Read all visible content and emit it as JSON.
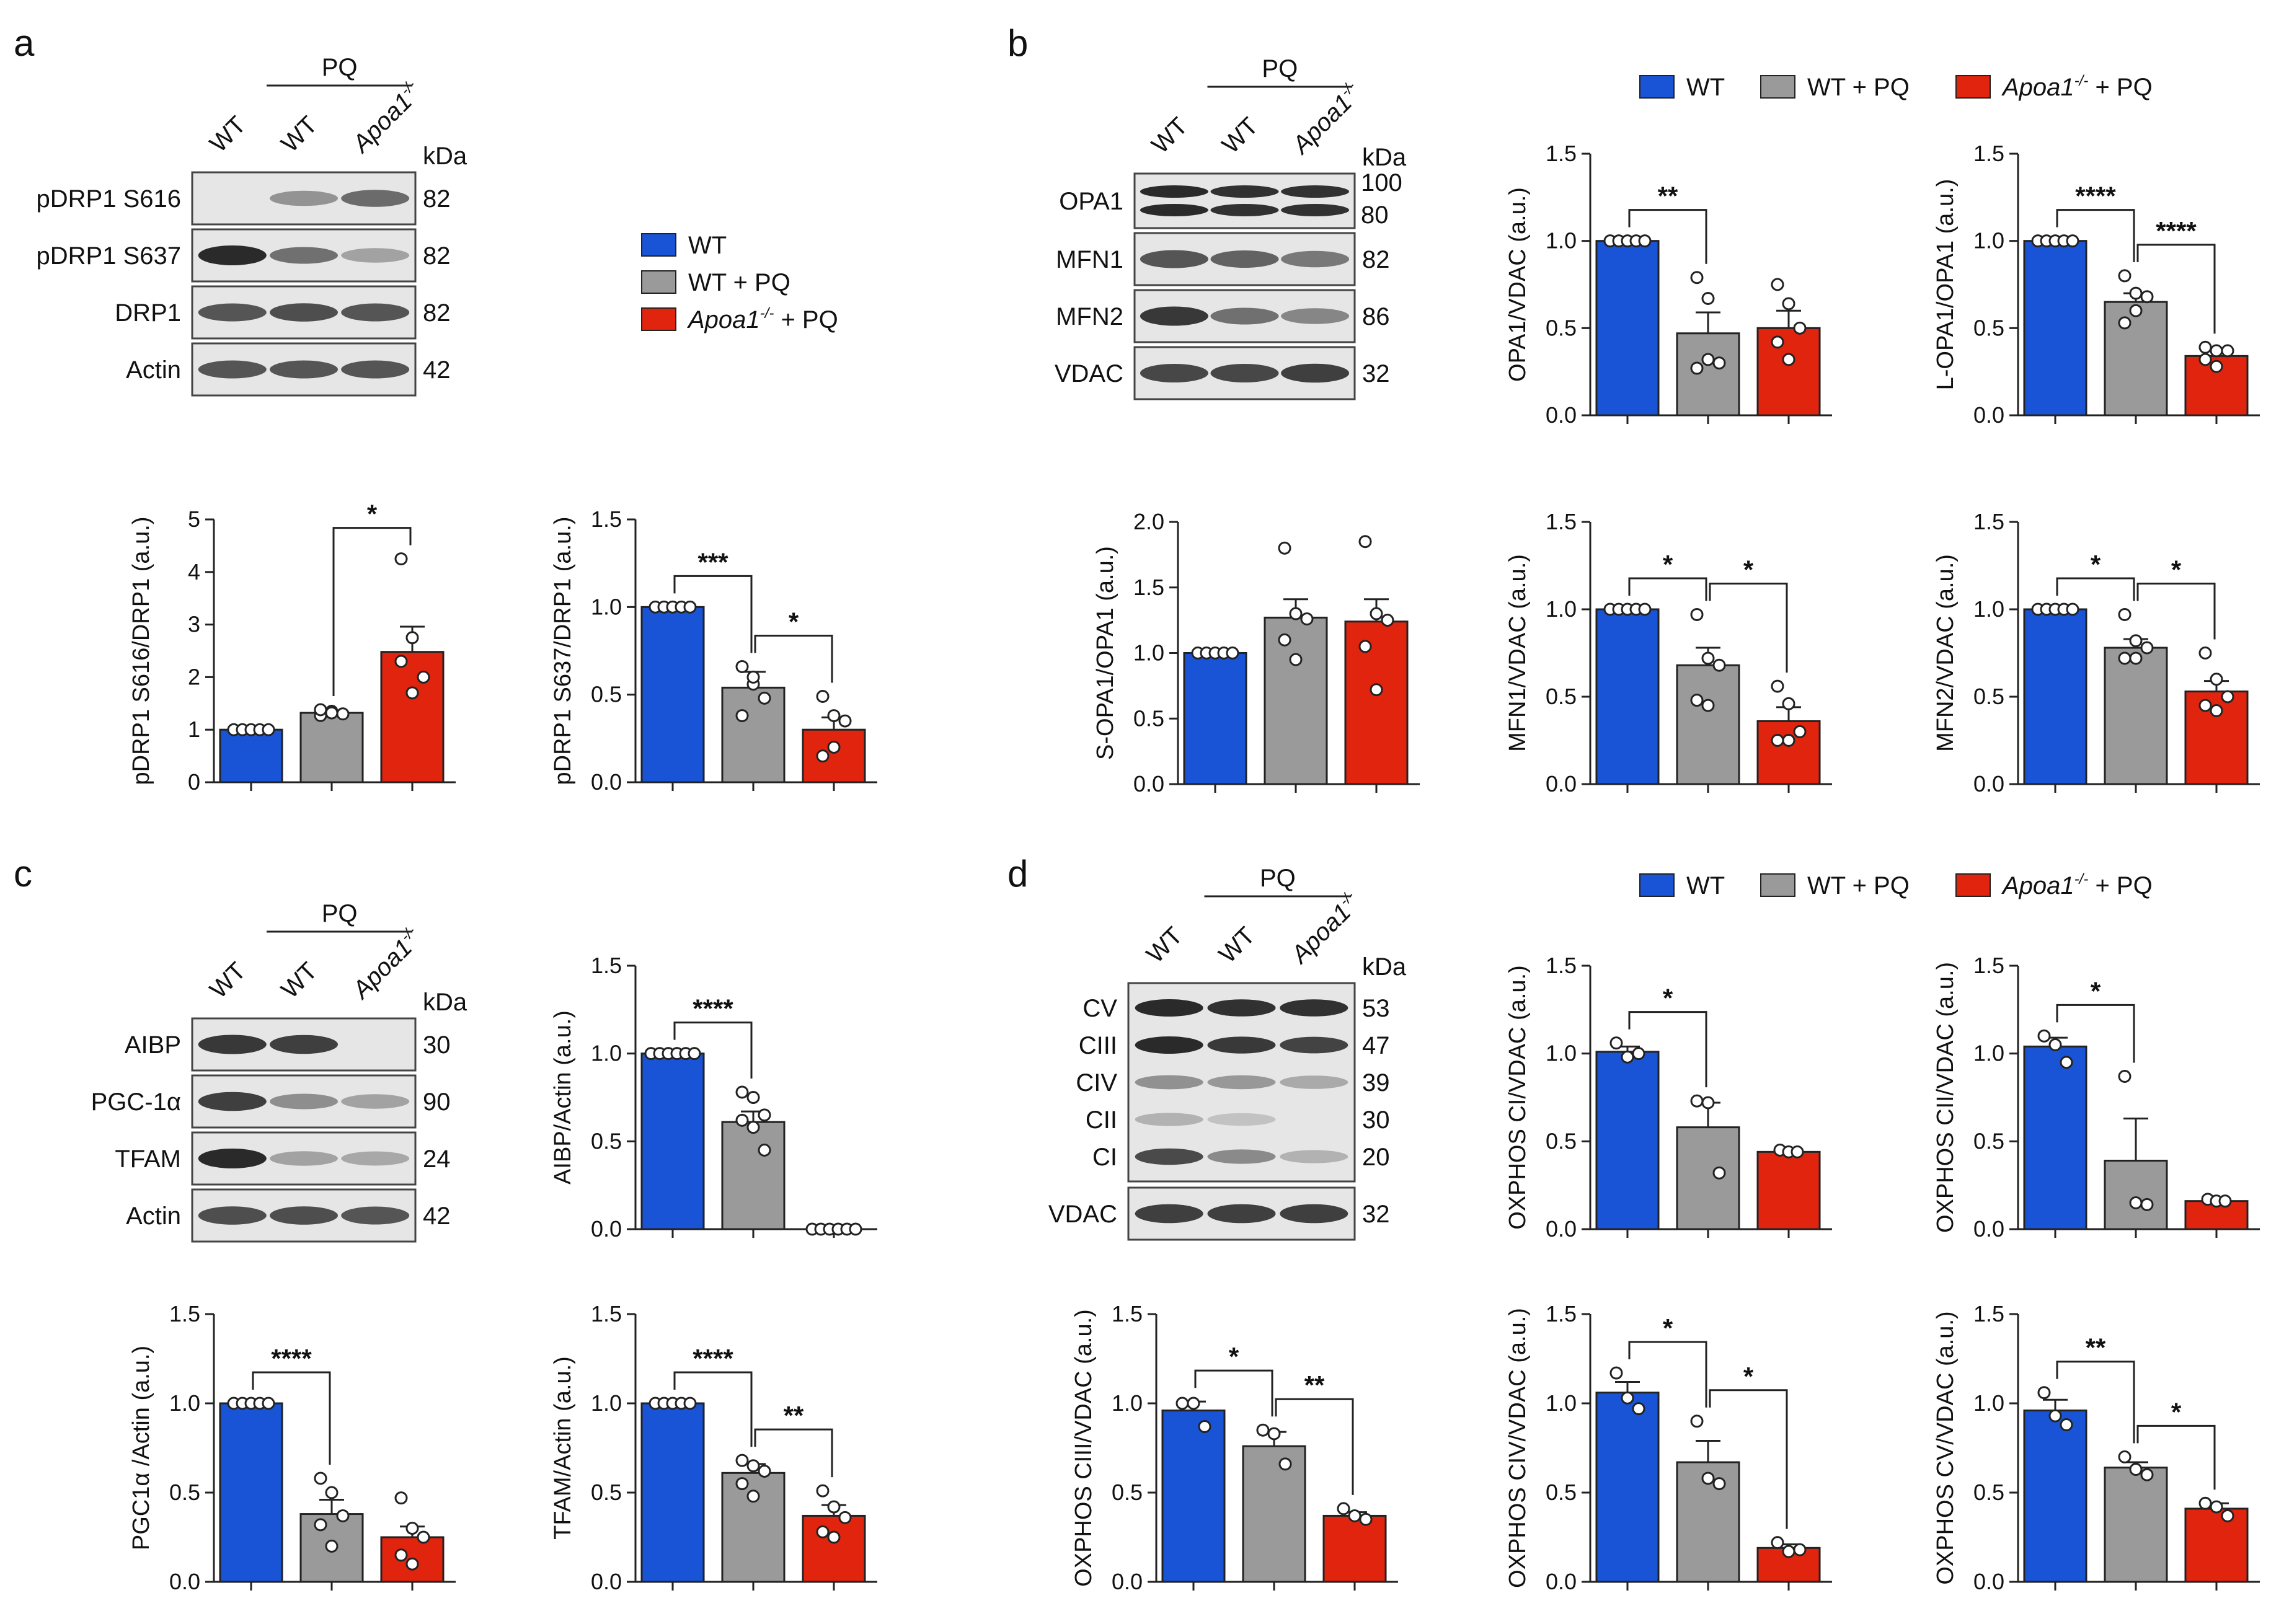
{
  "colors": {
    "wt": "#1a54d6",
    "wtpq": "#9a9a9a",
    "apoa": "#e1240e",
    "blot_bg": "#e6e6e6",
    "band": "#2a2a2a"
  },
  "panel_letters": [
    "a",
    "b",
    "c",
    "d"
  ],
  "legend": {
    "items": [
      "WT",
      "WT + PQ",
      "Apoa1-/- + PQ"
    ],
    "apoa_prefix": "Apoa1",
    "apoa_sup": "-/-",
    "apoa_suffix": " + PQ"
  },
  "blots": [
    {
      "id": "a",
      "group_label": "PQ",
      "kda_label": "kDa",
      "lanes": [
        "WT",
        "WT",
        "Apoa1-/-"
      ],
      "lane_base": "Apoa1",
      "lane_sup": "-/-",
      "rows": [
        {
          "label": "pDRP1 S616",
          "kda": [
            "82"
          ],
          "bands": [
            0.0,
            0.25,
            0.55
          ]
        },
        {
          "label": "pDRP1 S637",
          "kda": [
            "82"
          ],
          "bands": [
            1.0,
            0.5,
            0.15
          ]
        },
        {
          "label": "DRP1",
          "kda": [
            "82"
          ],
          "bands": [
            0.7,
            0.75,
            0.7
          ]
        },
        {
          "label": "Actin",
          "kda": [
            "42"
          ],
          "bands": [
            0.7,
            0.7,
            0.7
          ]
        }
      ]
    },
    {
      "id": "b",
      "group_label": "PQ",
      "kda_label": "kDa",
      "lanes": [
        "WT",
        "WT",
        "Apoa1-/-"
      ],
      "lane_base": "Apoa1",
      "lane_sup": "-/-",
      "rows": [
        {
          "label": "OPA1",
          "kda": [
            "100",
            "80"
          ],
          "bands": [
            1.0,
            0.95,
            0.95
          ],
          "double": true
        },
        {
          "label": "MFN1",
          "kda": [
            "82"
          ],
          "bands": [
            0.7,
            0.6,
            0.45
          ]
        },
        {
          "label": "MFN2",
          "kda": [
            "86"
          ],
          "bands": [
            0.9,
            0.5,
            0.35
          ]
        },
        {
          "label": "VDAC",
          "kda": [
            "32"
          ],
          "bands": [
            0.8,
            0.8,
            0.85
          ]
        }
      ]
    },
    {
      "id": "c",
      "group_label": "PQ",
      "kda_label": "kDa",
      "lanes": [
        "WT",
        "WT",
        "Apoa1-/-"
      ],
      "lane_base": "Apoa1",
      "lane_sup": "-/-",
      "rows": [
        {
          "label": "AIBP",
          "kda": [
            "30"
          ],
          "bands": [
            0.9,
            0.85,
            0.0
          ]
        },
        {
          "label": "PGC-1α",
          "kda": [
            "90"
          ],
          "bands": [
            0.85,
            0.3,
            0.15
          ]
        },
        {
          "label": "TFAM",
          "kda": [
            "24"
          ],
          "bands": [
            1.0,
            0.15,
            0.1
          ]
        },
        {
          "label": "Actin",
          "kda": [
            "42"
          ],
          "bands": [
            0.75,
            0.75,
            0.7
          ]
        }
      ]
    },
    {
      "id": "d",
      "group_label": "PQ",
      "kda_label": "kDa",
      "lanes": [
        "WT",
        "WT",
        "Apoa1-/-"
      ],
      "lane_base": "Apoa1",
      "lane_sup": "-/-",
      "oxphos": {
        "labels": [
          "CV",
          "CIII",
          "CIV",
          "CII",
          "CI"
        ],
        "kda": [
          "53",
          "47",
          "39",
          "30",
          "20"
        ],
        "bands": [
          [
            1.0,
            0.95,
            0.95
          ],
          [
            1.0,
            0.9,
            0.85
          ],
          [
            0.35,
            0.3,
            0.2
          ],
          [
            0.15,
            0.05,
            0.0
          ],
          [
            0.8,
            0.4,
            0.15
          ]
        ]
      },
      "rows": [
        {
          "label": "VDAC",
          "kda": [
            "32"
          ],
          "bands": [
            0.85,
            0.85,
            0.85
          ]
        }
      ]
    }
  ],
  "chart_data": [
    {
      "id": "a_s616",
      "type": "bar",
      "ylabel": "pDRP1 S616/DRP1 (a.u.)",
      "ylim": [
        0,
        5
      ],
      "ticks": [
        "0",
        "1",
        "2",
        "3",
        "4",
        "5"
      ],
      "tick_values": [
        0,
        1,
        2,
        3,
        4,
        5
      ],
      "categories": [
        "WT",
        "WT + PQ",
        "Apoa1-/- + PQ"
      ],
      "values": [
        1.0,
        1.32,
        2.48
      ],
      "sem": [
        0,
        0.04,
        0.48
      ],
      "points": [
        [
          1,
          1,
          1,
          1,
          1
        ],
        [
          1.27,
          1.35,
          1.3,
          1.38,
          1.32
        ],
        [
          4.25,
          2.75,
          2.0,
          2.3,
          1.7
        ]
      ],
      "sig": [
        {
          "from": 1,
          "to": 2,
          "label": "*"
        }
      ]
    },
    {
      "id": "a_s637",
      "type": "bar",
      "ylabel": "pDRP1 S637/DRP1 (a.u.)",
      "ylim": [
        0,
        1.5
      ],
      "ticks": [
        "0.0",
        "0.5",
        "1.0",
        "1.5"
      ],
      "tick_values": [
        0,
        0.5,
        1.0,
        1.5
      ],
      "categories": [
        "WT",
        "WT + PQ",
        "Apoa1-/- + PQ"
      ],
      "values": [
        1.0,
        0.54,
        0.3
      ],
      "sem": [
        0,
        0.09,
        0.07
      ],
      "points": [
        [
          1,
          1,
          1,
          1,
          1
        ],
        [
          0.66,
          0.56,
          0.48,
          0.38,
          0.6
        ],
        [
          0.49,
          0.38,
          0.35,
          0.15,
          0.2
        ]
      ],
      "sig": [
        {
          "from": 0,
          "to": 1,
          "label": "***"
        },
        {
          "from": 1,
          "to": 2,
          "label": "*"
        }
      ]
    },
    {
      "id": "b_opa1",
      "type": "bar",
      "ylabel": "OPA1/VDAC (a.u.)",
      "ylim": [
        0,
        1.5
      ],
      "ticks": [
        "0.0",
        "0.5",
        "1.0",
        "1.5"
      ],
      "tick_values": [
        0,
        0.5,
        1.0,
        1.5
      ],
      "categories": [
        "WT",
        "WT + PQ",
        "Apoa1-/- + PQ"
      ],
      "values": [
        1.0,
        0.47,
        0.5
      ],
      "sem": [
        0,
        0.12,
        0.1
      ],
      "points": [
        [
          1,
          1,
          1,
          1,
          1
        ],
        [
          0.79,
          0.67,
          0.3,
          0.27,
          0.32
        ],
        [
          0.75,
          0.64,
          0.5,
          0.42,
          0.32
        ]
      ],
      "sig": [
        {
          "from": 0,
          "to": 1,
          "label": "**"
        }
      ]
    },
    {
      "id": "b_lopa1",
      "type": "bar",
      "ylabel": "L-OPA1/OPA1 (a.u.)",
      "ylim": [
        0,
        1.5
      ],
      "ticks": [
        "0.0",
        "0.5",
        "1.0",
        "1.5"
      ],
      "tick_values": [
        0,
        0.5,
        1.0,
        1.5
      ],
      "categories": [
        "WT",
        "WT + PQ",
        "Apoa1-/- + PQ"
      ],
      "values": [
        1.0,
        0.65,
        0.34
      ],
      "sem": [
        0,
        0.05,
        0.03
      ],
      "points": [
        [
          1,
          1,
          1,
          1,
          1
        ],
        [
          0.8,
          0.7,
          0.68,
          0.53,
          0.6
        ],
        [
          0.39,
          0.37,
          0.37,
          0.32,
          0.28
        ]
      ],
      "sig": [
        {
          "from": 0,
          "to": 1,
          "label": "****"
        },
        {
          "from": 1,
          "to": 2,
          "label": "****"
        }
      ]
    },
    {
      "id": "b_sopa1",
      "type": "bar",
      "ylabel": "S-OPA1/OPA1 (a.u.)",
      "ylim": [
        0,
        2.0
      ],
      "ticks": [
        "0.0",
        "0.5",
        "1.0",
        "1.5",
        "2.0"
      ],
      "tick_values": [
        0,
        0.5,
        1.0,
        1.5,
        2.0
      ],
      "categories": [
        "WT",
        "WT + PQ",
        "Apoa1-/- + PQ"
      ],
      "values": [
        1.0,
        1.27,
        1.24
      ],
      "sem": [
        0,
        0.14,
        0.17
      ],
      "points": [
        [
          1,
          1,
          1,
          1,
          1
        ],
        [
          1.8,
          1.3,
          1.26,
          1.1,
          0.95
        ],
        [
          1.85,
          1.3,
          1.25,
          1.05,
          0.72
        ]
      ],
      "sig": []
    },
    {
      "id": "b_mfn1",
      "type": "bar",
      "ylabel": "MFN1/VDAC (a.u.)",
      "ylim": [
        0,
        1.5
      ],
      "ticks": [
        "0.0",
        "0.5",
        "1.0",
        "1.5"
      ],
      "tick_values": [
        0,
        0.5,
        1.0,
        1.5
      ],
      "categories": [
        "WT",
        "WT + PQ",
        "Apoa1-/- + PQ"
      ],
      "values": [
        1.0,
        0.68,
        0.36
      ],
      "sem": [
        0,
        0.1,
        0.08
      ],
      "points": [
        [
          1,
          1,
          1,
          1,
          1
        ],
        [
          0.97,
          0.72,
          0.68,
          0.48,
          0.45
        ],
        [
          0.56,
          0.46,
          0.3,
          0.25,
          0.25
        ]
      ],
      "sig": [
        {
          "from": 0,
          "to": 1,
          "label": "*"
        },
        {
          "from": 1,
          "to": 2,
          "label": "*"
        }
      ]
    },
    {
      "id": "b_mfn2",
      "type": "bar",
      "ylabel": "MFN2/VDAC (a.u.)",
      "ylim": [
        0,
        1.5
      ],
      "ticks": [
        "0.0",
        "0.5",
        "1.0",
        "1.5"
      ],
      "tick_values": [
        0,
        0.5,
        1.0,
        1.5
      ],
      "categories": [
        "WT",
        "WT + PQ",
        "Apoa1-/- + PQ"
      ],
      "values": [
        1.0,
        0.78,
        0.53
      ],
      "sem": [
        0,
        0.05,
        0.06
      ],
      "points": [
        [
          1,
          1,
          1,
          1,
          1
        ],
        [
          0.97,
          0.82,
          0.78,
          0.72,
          0.72
        ],
        [
          0.75,
          0.6,
          0.5,
          0.45,
          0.42
        ]
      ],
      "sig": [
        {
          "from": 0,
          "to": 1,
          "label": "*"
        },
        {
          "from": 1,
          "to": 2,
          "label": "*"
        }
      ]
    },
    {
      "id": "c_aibp",
      "type": "bar",
      "ylabel": "AIBP/Actin (a.u.)",
      "ylim": [
        0,
        1.5
      ],
      "ticks": [
        "0.0",
        "0.5",
        "1.0",
        "1.5"
      ],
      "tick_values": [
        0,
        0.5,
        1.0,
        1.5
      ],
      "categories": [
        "WT",
        "WT + PQ",
        "Apoa1-/- + PQ"
      ],
      "values": [
        1.0,
        0.61,
        0.0
      ],
      "sem": [
        0,
        0.06,
        0
      ],
      "points": [
        [
          1,
          1,
          1,
          1,
          1,
          1
        ],
        [
          0.78,
          0.75,
          0.65,
          0.62,
          0.58,
          0.45
        ],
        [
          0,
          0,
          0,
          0,
          0,
          0
        ]
      ],
      "sig": [
        {
          "from": 0,
          "to": 1,
          "label": "****"
        }
      ]
    },
    {
      "id": "c_pgc",
      "type": "bar",
      "ylabel": "PGC1α /Actin (a.u.)",
      "ylim": [
        0,
        1.5
      ],
      "ticks": [
        "0.0",
        "0.5",
        "1.0",
        "1.5"
      ],
      "tick_values": [
        0,
        0.5,
        1.0,
        1.5
      ],
      "categories": [
        "WT",
        "WT + PQ",
        "Apoa1-/- + PQ"
      ],
      "values": [
        1.0,
        0.38,
        0.25
      ],
      "sem": [
        0,
        0.08,
        0.06
      ],
      "points": [
        [
          1,
          1,
          1,
          1,
          1
        ],
        [
          0.58,
          0.5,
          0.37,
          0.32,
          0.2
        ],
        [
          0.47,
          0.3,
          0.25,
          0.15,
          0.1
        ]
      ],
      "sig": [
        {
          "from": 0,
          "to": 1,
          "label": "****"
        }
      ]
    },
    {
      "id": "c_tfam",
      "type": "bar",
      "ylabel": "TFAM/Actin (a.u.)",
      "ylim": [
        0,
        1.5
      ],
      "ticks": [
        "0.0",
        "0.5",
        "1.0",
        "1.5"
      ],
      "tick_values": [
        0,
        0.5,
        1.0,
        1.5
      ],
      "categories": [
        "WT",
        "WT + PQ",
        "Apoa1-/- + PQ"
      ],
      "values": [
        1.0,
        0.61,
        0.37
      ],
      "sem": [
        0,
        0.05,
        0.06
      ],
      "points": [
        [
          1,
          1,
          1,
          1,
          1
        ],
        [
          0.68,
          0.65,
          0.62,
          0.55,
          0.48
        ],
        [
          0.51,
          0.42,
          0.36,
          0.28,
          0.25
        ]
      ],
      "sig": [
        {
          "from": 0,
          "to": 1,
          "label": "****"
        },
        {
          "from": 1,
          "to": 2,
          "label": "**"
        }
      ]
    },
    {
      "id": "d_ci",
      "type": "bar",
      "ylabel": "OXPHOS CI/VDAC (a.u.)",
      "ylim": [
        0,
        1.5
      ],
      "ticks": [
        "0.0",
        "0.5",
        "1.0",
        "1.5"
      ],
      "tick_values": [
        0,
        0.5,
        1.0,
        1.5
      ],
      "categories": [
        "WT",
        "WT + PQ",
        "Apoa1-/- + PQ"
      ],
      "values": [
        1.01,
        0.58,
        0.44
      ],
      "sem": [
        0.03,
        0.14,
        0.01
      ],
      "points": [
        [
          1.06,
          0.98,
          1.0
        ],
        [
          0.73,
          0.72,
          0.32
        ],
        [
          0.45,
          0.44,
          0.44
        ]
      ],
      "sig": [
        {
          "from": 0,
          "to": 1,
          "label": "*"
        }
      ]
    },
    {
      "id": "d_cii",
      "type": "bar",
      "ylabel": "OXPHOS CII/VDAC (a.u.)",
      "ylim": [
        0,
        1.5
      ],
      "ticks": [
        "0.0",
        "0.5",
        "1.0",
        "1.5"
      ],
      "tick_values": [
        0,
        0.5,
        1.0,
        1.5
      ],
      "categories": [
        "WT",
        "WT + PQ",
        "Apoa1-/- + PQ"
      ],
      "values": [
        1.04,
        0.39,
        0.16
      ],
      "sem": [
        0.05,
        0.24,
        0.01
      ],
      "points": [
        [
          1.1,
          1.05,
          0.95
        ],
        [
          0.87,
          0.15,
          0.14
        ],
        [
          0.17,
          0.16,
          0.16
        ]
      ],
      "sig": [
        {
          "from": 0,
          "to": 1,
          "label": "*"
        }
      ]
    },
    {
      "id": "d_ciii",
      "type": "bar",
      "ylabel": "OXPHOS CIII/VDAC (a.u.)",
      "ylim": [
        0,
        1.5
      ],
      "ticks": [
        "0.0",
        "0.5",
        "1.0",
        "1.5"
      ],
      "tick_values": [
        0,
        0.5,
        1.0,
        1.5
      ],
      "categories": [
        "WT",
        "WT + PQ",
        "Apoa1-/- + PQ"
      ],
      "values": [
        0.96,
        0.76,
        0.37
      ],
      "sem": [
        0.05,
        0.08,
        0.02
      ],
      "points": [
        [
          1.0,
          1.0,
          0.87
        ],
        [
          0.85,
          0.83,
          0.66
        ],
        [
          0.41,
          0.37,
          0.35
        ]
      ],
      "sig": [
        {
          "from": 0,
          "to": 1,
          "label": "*"
        },
        {
          "from": 1,
          "to": 2,
          "label": "**"
        }
      ]
    },
    {
      "id": "d_civ",
      "type": "bar",
      "ylabel": "OXPHOS CIV/VDAC (a.u.)",
      "ylim": [
        0,
        1.5
      ],
      "ticks": [
        "0.0",
        "0.5",
        "1.0",
        "1.5"
      ],
      "tick_values": [
        0,
        0.5,
        1.0,
        1.5
      ],
      "categories": [
        "WT",
        "WT + PQ",
        "Apoa1-/- + PQ"
      ],
      "values": [
        1.06,
        0.67,
        0.19
      ],
      "sem": [
        0.06,
        0.12,
        0.02
      ],
      "points": [
        [
          1.17,
          1.03,
          0.97
        ],
        [
          0.9,
          0.58,
          0.55
        ],
        [
          0.22,
          0.17,
          0.18
        ]
      ],
      "sig": [
        {
          "from": 0,
          "to": 1,
          "label": "*"
        },
        {
          "from": 1,
          "to": 2,
          "label": "*"
        }
      ]
    },
    {
      "id": "d_cv",
      "type": "bar",
      "ylabel": "OXPHOS CV/VDAC (a.u.)",
      "ylim": [
        0,
        1.5
      ],
      "ticks": [
        "0.0",
        "0.5",
        "1.0",
        "1.5"
      ],
      "tick_values": [
        0,
        0.5,
        1.0,
        1.5
      ],
      "categories": [
        "WT",
        "WT + PQ",
        "Apoa1-/- + PQ"
      ],
      "values": [
        0.96,
        0.64,
        0.41
      ],
      "sem": [
        0.06,
        0.03,
        0.03
      ],
      "points": [
        [
          1.06,
          0.93,
          0.88
        ],
        [
          0.7,
          0.63,
          0.6
        ],
        [
          0.44,
          0.42,
          0.37
        ]
      ],
      "sig": [
        {
          "from": 0,
          "to": 1,
          "label": "**"
        },
        {
          "from": 1,
          "to": 2,
          "label": "*"
        }
      ]
    }
  ]
}
